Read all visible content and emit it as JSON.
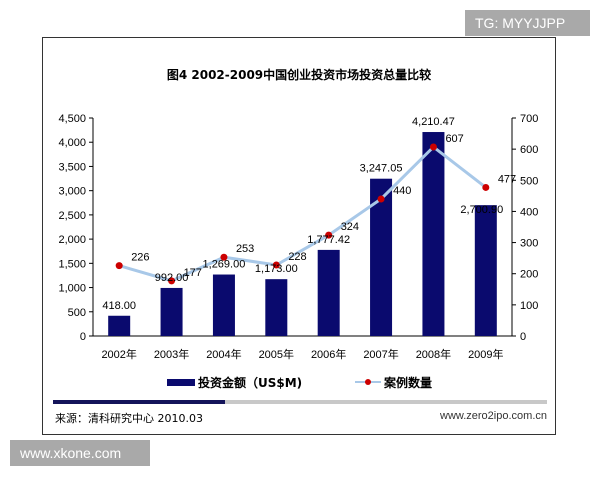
{
  "watermark_top": "TG: MYYJJPP",
  "watermark_bottom": "www.xkone.com",
  "source": "来源：清科研究中心  2010.03",
  "url": "www.zero2ipo.com.cn",
  "chart_data": {
    "type": "bar+line",
    "title": "图4  2002-2009中国创业投资市场投资总量比较",
    "categories": [
      "2002年",
      "2003年",
      "2004年",
      "2005年",
      "2006年",
      "2007年",
      "2008年",
      "2009年"
    ],
    "series": [
      {
        "name": "投资金额（US$M)",
        "type": "bar",
        "axis": "left",
        "color": "#0a0a6e",
        "values": [
          418.0,
          992.0,
          1269.0,
          1173.0,
          1777.42,
          3247.05,
          4210.47,
          2700.9
        ],
        "labels": [
          "418.00",
          "992.00",
          "1,269.00",
          "1,173.00",
          "1,777.42",
          "3,247.05",
          "4,210.47",
          "2,700.90"
        ]
      },
      {
        "name": "案例数量",
        "type": "line",
        "axis": "right",
        "color": "#a8c8e8",
        "marker_color": "#cc0000",
        "values": [
          226,
          177,
          253,
          228,
          324,
          440,
          607,
          477
        ]
      }
    ],
    "y_left": {
      "min": 0,
      "max": 4500,
      "ticks": [
        "0",
        "500",
        "1,000",
        "1,500",
        "2,000",
        "2,500",
        "3,000",
        "3,500",
        "4,000",
        "4,500"
      ]
    },
    "y_right": {
      "min": 0,
      "max": 700,
      "ticks": [
        "0",
        "100",
        "200",
        "300",
        "400",
        "500",
        "600",
        "700"
      ]
    },
    "legend": "bottom",
    "grid": false
  }
}
